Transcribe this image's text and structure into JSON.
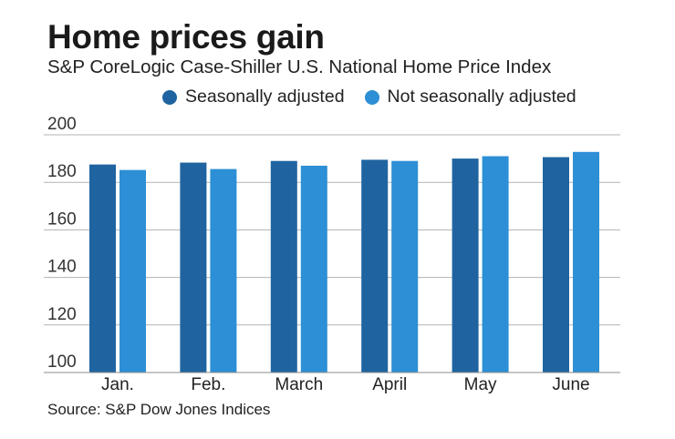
{
  "title": "Home prices gain",
  "subtitle": "S&P CoreLogic Case-Shiller U.S. National Home Price Index",
  "source": "Source: S&P Dow Jones Indices",
  "colors": {
    "seasonally_adjusted": "#1f64a0",
    "not_seasonally_adjusted": "#2d8fd5",
    "grid": "#b3b3b3"
  },
  "chart_data": {
    "type": "bar",
    "title": "Home prices gain",
    "subtitle": "S&P CoreLogic Case-Shiller U.S. National Home Price Index",
    "categories": [
      "Jan.",
      "Feb.",
      "March",
      "April",
      "May",
      "June"
    ],
    "series": [
      {
        "name": "Seasonally adjusted",
        "values": [
          187.5,
          188.3,
          189.0,
          189.5,
          190.0,
          190.6
        ]
      },
      {
        "name": "Not seasonally adjusted",
        "values": [
          185.2,
          185.6,
          187.0,
          189.0,
          191.0,
          192.8
        ]
      }
    ],
    "xlabel": "",
    "ylabel": "",
    "ylim": [
      100,
      200
    ],
    "yticks": [
      100,
      120,
      140,
      160,
      180,
      200
    ],
    "grid": true,
    "legend": "top"
  }
}
